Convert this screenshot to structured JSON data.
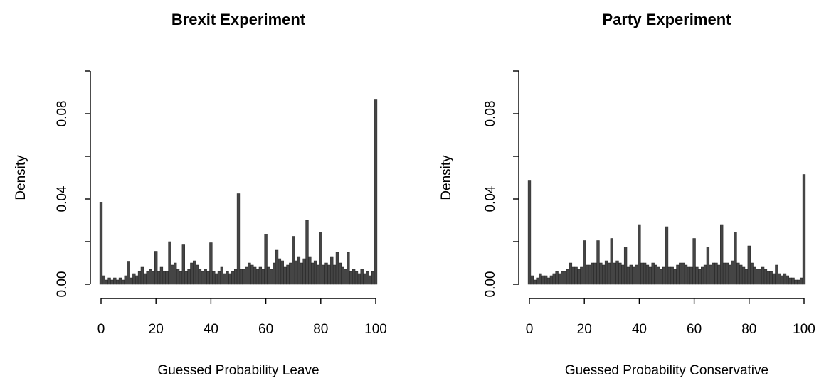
{
  "chart_data": [
    {
      "type": "bar",
      "title": "Brexit Experiment",
      "xlabel": "Guessed Probability Leave",
      "ylabel": "Density",
      "xlim": [
        0,
        100
      ],
      "ylim": [
        0,
        0.1
      ],
      "xticks": [
        "0",
        "20",
        "40",
        "60",
        "80",
        "100"
      ],
      "yticks": [
        "0.00",
        "0.04",
        "0.08"
      ],
      "x": [
        0,
        1,
        2,
        3,
        4,
        5,
        6,
        7,
        8,
        9,
        10,
        11,
        12,
        13,
        14,
        15,
        16,
        17,
        18,
        19,
        20,
        21,
        22,
        23,
        24,
        25,
        26,
        27,
        28,
        29,
        30,
        31,
        32,
        33,
        34,
        35,
        36,
        37,
        38,
        39,
        40,
        41,
        42,
        43,
        44,
        45,
        46,
        47,
        48,
        49,
        50,
        51,
        52,
        53,
        54,
        55,
        56,
        57,
        58,
        59,
        60,
        61,
        62,
        63,
        64,
        65,
        66,
        67,
        68,
        69,
        70,
        71,
        72,
        73,
        74,
        75,
        76,
        77,
        78,
        79,
        80,
        81,
        82,
        83,
        84,
        85,
        86,
        87,
        88,
        89,
        90,
        91,
        92,
        93,
        94,
        95,
        96,
        97,
        98,
        99,
        100
      ],
      "values": [
        0.0385,
        0.004,
        0.002,
        0.003,
        0.002,
        0.003,
        0.002,
        0.003,
        0.002,
        0.004,
        0.0105,
        0.003,
        0.005,
        0.004,
        0.006,
        0.008,
        0.005,
        0.006,
        0.007,
        0.006,
        0.0155,
        0.006,
        0.008,
        0.006,
        0.006,
        0.02,
        0.009,
        0.01,
        0.007,
        0.006,
        0.0185,
        0.006,
        0.007,
        0.01,
        0.011,
        0.009,
        0.007,
        0.006,
        0.007,
        0.006,
        0.0195,
        0.006,
        0.005,
        0.006,
        0.008,
        0.005,
        0.006,
        0.005,
        0.006,
        0.007,
        0.0425,
        0.007,
        0.007,
        0.008,
        0.01,
        0.009,
        0.008,
        0.007,
        0.008,
        0.007,
        0.0235,
        0.008,
        0.007,
        0.01,
        0.016,
        0.012,
        0.011,
        0.008,
        0.009,
        0.01,
        0.0225,
        0.011,
        0.013,
        0.01,
        0.012,
        0.03,
        0.013,
        0.01,
        0.011,
        0.009,
        0.0245,
        0.009,
        0.01,
        0.009,
        0.013,
        0.009,
        0.015,
        0.01,
        0.008,
        0.007,
        0.015,
        0.006,
        0.007,
        0.006,
        0.005,
        0.007,
        0.005,
        0.006,
        0.004,
        0.006,
        0.0865
      ]
    },
    {
      "type": "bar",
      "title": "Party Experiment",
      "xlabel": "Guessed Probability Conservative",
      "ylabel": "Density",
      "xlim": [
        0,
        100
      ],
      "ylim": [
        0,
        0.1
      ],
      "xticks": [
        "0",
        "20",
        "40",
        "60",
        "80",
        "100"
      ],
      "yticks": [
        "0.00",
        "0.04",
        "0.08"
      ],
      "x": [
        0,
        1,
        2,
        3,
        4,
        5,
        6,
        7,
        8,
        9,
        10,
        11,
        12,
        13,
        14,
        15,
        16,
        17,
        18,
        19,
        20,
        21,
        22,
        23,
        24,
        25,
        26,
        27,
        28,
        29,
        30,
        31,
        32,
        33,
        34,
        35,
        36,
        37,
        38,
        39,
        40,
        41,
        42,
        43,
        44,
        45,
        46,
        47,
        48,
        49,
        50,
        51,
        52,
        53,
        54,
        55,
        56,
        57,
        58,
        59,
        60,
        61,
        62,
        63,
        64,
        65,
        66,
        67,
        68,
        69,
        70,
        71,
        72,
        73,
        74,
        75,
        76,
        77,
        78,
        79,
        80,
        81,
        82,
        83,
        84,
        85,
        86,
        87,
        88,
        89,
        90,
        91,
        92,
        93,
        94,
        95,
        96,
        97,
        98,
        99,
        100
      ],
      "values": [
        0.0485,
        0.004,
        0.002,
        0.003,
        0.005,
        0.004,
        0.004,
        0.003,
        0.004,
        0.005,
        0.006,
        0.005,
        0.006,
        0.006,
        0.007,
        0.01,
        0.008,
        0.008,
        0.007,
        0.008,
        0.0205,
        0.009,
        0.009,
        0.01,
        0.01,
        0.0205,
        0.01,
        0.009,
        0.011,
        0.01,
        0.0215,
        0.01,
        0.011,
        0.01,
        0.009,
        0.0175,
        0.008,
        0.009,
        0.008,
        0.009,
        0.028,
        0.01,
        0.01,
        0.009,
        0.008,
        0.01,
        0.009,
        0.008,
        0.007,
        0.008,
        0.027,
        0.008,
        0.008,
        0.007,
        0.009,
        0.01,
        0.01,
        0.009,
        0.008,
        0.008,
        0.0215,
        0.008,
        0.007,
        0.008,
        0.009,
        0.0175,
        0.009,
        0.01,
        0.01,
        0.009,
        0.028,
        0.01,
        0.01,
        0.009,
        0.011,
        0.0245,
        0.01,
        0.009,
        0.008,
        0.007,
        0.018,
        0.01,
        0.008,
        0.007,
        0.007,
        0.008,
        0.007,
        0.006,
        0.006,
        0.005,
        0.009,
        0.005,
        0.004,
        0.005,
        0.004,
        0.003,
        0.003,
        0.002,
        0.002,
        0.003,
        0.0515
      ]
    }
  ]
}
